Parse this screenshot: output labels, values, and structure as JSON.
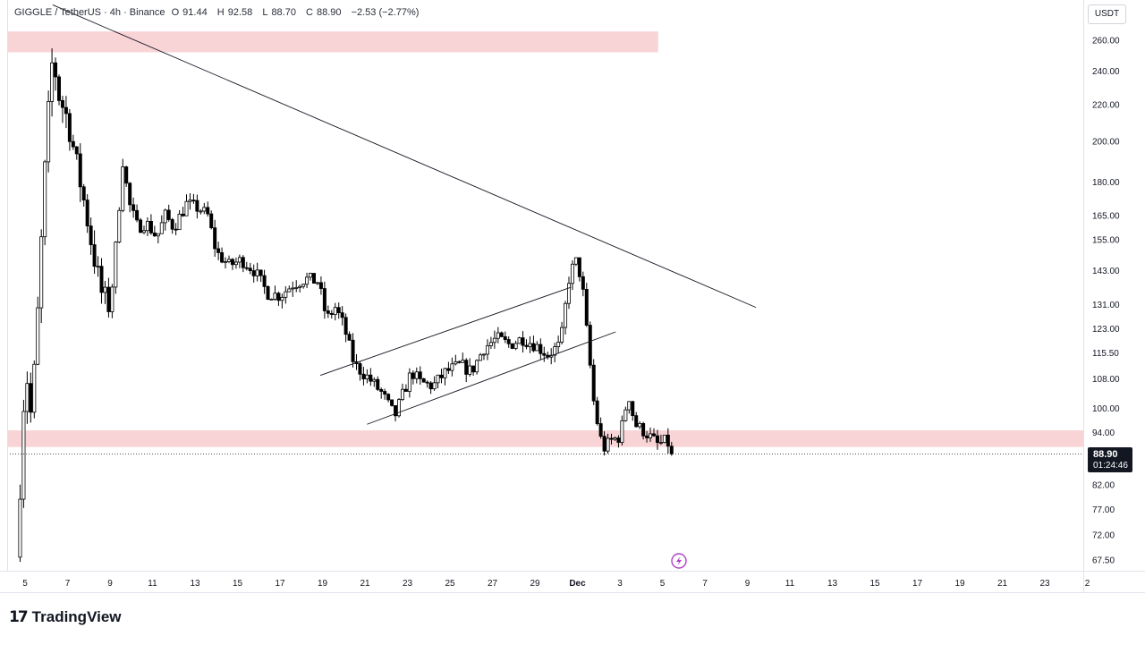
{
  "header": {
    "symbol": "GIGGLE / TetherUS · 4h · Binance",
    "open_label": "O",
    "open": "91.44",
    "high_label": "H",
    "high": "92.58",
    "low_label": "L",
    "low": "88.70",
    "close_label": "C",
    "close": "88.90",
    "change": "−2.53 (−2.77%)"
  },
  "currency_button": "USDT",
  "last_price": "88.90",
  "countdown": "01:24:46",
  "brand": {
    "mark": "17",
    "name": "TradingView"
  },
  "colors": {
    "candle": "#000000",
    "zone": "#f9d4d7",
    "line": "#131722",
    "grid_border": "#e0e3eb",
    "alert_icon": "#b040c8"
  },
  "alert_icon": "lightning-icon",
  "chart_data": {
    "type": "candlestick",
    "title": "",
    "xlabel": "",
    "ylabel": "",
    "y_scale": "log",
    "ylim": [
      65,
      290
    ],
    "x_ticks": [
      {
        "day": 5,
        "label": "5"
      },
      {
        "day": 7,
        "label": "7"
      },
      {
        "day": 9,
        "label": "9"
      },
      {
        "day": 11,
        "label": "11"
      },
      {
        "day": 13,
        "label": "13"
      },
      {
        "day": 15,
        "label": "15"
      },
      {
        "day": 17,
        "label": "17"
      },
      {
        "day": 19,
        "label": "19"
      },
      {
        "day": 21,
        "label": "21"
      },
      {
        "day": 23,
        "label": "23"
      },
      {
        "day": 25,
        "label": "25"
      },
      {
        "day": 27,
        "label": "27"
      },
      {
        "day": 29,
        "label": "29"
      },
      {
        "day": 31,
        "label": "Dec"
      },
      {
        "day": 33,
        "label": "3"
      },
      {
        "day": 35,
        "label": "5"
      },
      {
        "day": 37,
        "label": "7"
      },
      {
        "day": 39,
        "label": "9"
      },
      {
        "day": 41,
        "label": "11"
      },
      {
        "day": 43,
        "label": "13"
      },
      {
        "day": 45,
        "label": "15"
      },
      {
        "day": 47,
        "label": "17"
      },
      {
        "day": 49,
        "label": "19"
      },
      {
        "day": 51,
        "label": "21"
      },
      {
        "day": 53,
        "label": "23"
      },
      {
        "day": 55,
        "label": "2"
      }
    ],
    "y_ticks": [
      "260.00",
      "240.00",
      "220.00",
      "200.00",
      "180.00",
      "165.00",
      "155.00",
      "143.00",
      "131.00",
      "123.00",
      "115.50",
      "108.00",
      "100.00",
      "94.00",
      "82.00",
      "77.00",
      "72.00",
      "67.50"
    ],
    "y_tick_values": [
      260,
      240,
      220,
      200,
      180,
      165,
      155,
      143,
      131,
      123,
      115.5,
      108,
      100,
      94,
      82,
      77,
      72,
      67.5
    ],
    "anchors": [
      [
        4.6,
        68
      ],
      [
        4.8,
        85
      ],
      [
        4.9,
        100
      ],
      [
        5.1,
        108
      ],
      [
        5.3,
        97
      ],
      [
        5.6,
        128
      ],
      [
        5.8,
        160
      ],
      [
        6.0,
        200
      ],
      [
        6.3,
        250
      ],
      [
        6.6,
        225
      ],
      [
        7.0,
        212
      ],
      [
        7.4,
        190
      ],
      [
        7.8,
        170
      ],
      [
        8.2,
        150
      ],
      [
        8.6,
        135
      ],
      [
        9.0,
        130
      ],
      [
        9.3,
        155
      ],
      [
        9.6,
        190
      ],
      [
        9.9,
        170
      ],
      [
        10.3,
        160
      ],
      [
        10.7,
        162
      ],
      [
        11.2,
        156
      ],
      [
        11.6,
        165
      ],
      [
        12.0,
        160
      ],
      [
        12.6,
        170
      ],
      [
        13.2,
        168
      ],
      [
        13.6,
        165
      ],
      [
        14.0,
        150
      ],
      [
        14.6,
        145
      ],
      [
        15.2,
        147
      ],
      [
        15.8,
        143
      ],
      [
        16.4,
        135
      ],
      [
        17.0,
        134
      ],
      [
        17.6,
        138
      ],
      [
        18.2,
        140
      ],
      [
        18.8,
        139
      ],
      [
        19.2,
        126
      ],
      [
        19.6,
        130
      ],
      [
        20.0,
        124
      ],
      [
        20.5,
        112
      ],
      [
        21.2,
        108
      ],
      [
        21.8,
        104
      ],
      [
        22.4,
        98
      ],
      [
        22.8,
        104
      ],
      [
        23.2,
        110
      ],
      [
        23.6,
        107
      ],
      [
        24.2,
        106
      ],
      [
        24.8,
        110
      ],
      [
        25.5,
        112
      ],
      [
        26.0,
        110
      ],
      [
        26.6,
        117
      ],
      [
        27.2,
        120
      ],
      [
        27.8,
        118
      ],
      [
        28.4,
        120
      ],
      [
        29.0,
        118
      ],
      [
        29.6,
        115
      ],
      [
        30.2,
        118
      ],
      [
        30.6,
        140
      ],
      [
        30.9,
        147
      ],
      [
        31.2,
        140
      ],
      [
        31.5,
        118
      ],
      [
        31.8,
        100
      ],
      [
        32.2,
        90
      ],
      [
        32.6,
        92
      ],
      [
        33.0,
        93
      ],
      [
        33.4,
        104
      ],
      [
        33.7,
        96
      ],
      [
        34.2,
        94
      ],
      [
        34.8,
        91
      ],
      [
        35.2,
        92
      ],
      [
        35.5,
        88.9
      ]
    ],
    "zones": [
      {
        "day_from": 4.2,
        "day_to": 34.8,
        "price_low": 252,
        "price_high": 266
      },
      {
        "day_from": 4.2,
        "day_to": 55.5,
        "price_low": 90.5,
        "price_high": 94.5
      }
    ],
    "trendlines": [
      {
        "from": [
          6.3,
          285
        ],
        "to": [
          39.4,
          130
        ]
      },
      {
        "from": [
          18.9,
          109
        ],
        "to": [
          30.7,
          137
        ]
      },
      {
        "from": [
          21.1,
          96
        ],
        "to": [
          32.8,
          122
        ]
      }
    ],
    "last_price_value": 88.9
  }
}
